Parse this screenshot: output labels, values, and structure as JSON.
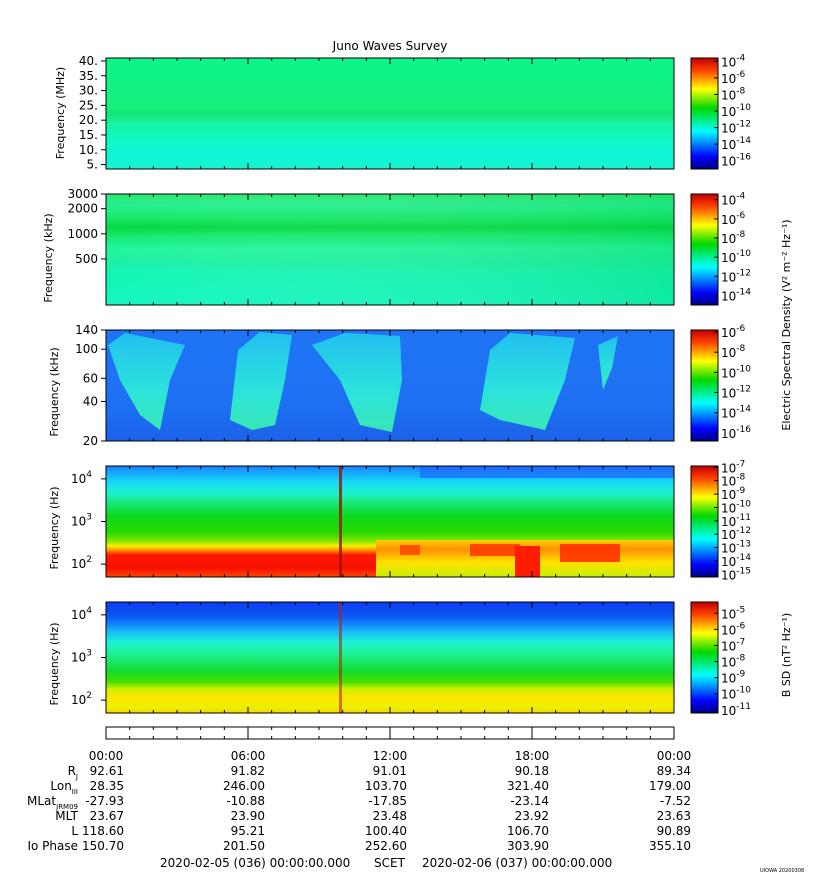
{
  "title": "Juno Waves Survey",
  "footer": {
    "start_time": "2020-02-05 (036) 00:00:00.000",
    "frame": "SCET",
    "end_time": "2020-02-06 (037) 00:00:00.000"
  },
  "stamp": "UIOWA 20200308",
  "colorbar_labels": {
    "e_spectral_density": "Electric Spectral Density (V² m⁻² Hz⁻¹)",
    "b_spectral_density": "B SD (nT² Hz⁻¹)"
  },
  "ephemeris": {
    "time_ticks": [
      "00:00",
      "06:00",
      "12:00",
      "18:00",
      "00:00"
    ],
    "rows": [
      {
        "label": "R",
        "sub": "J",
        "values": [
          "92.61",
          "91.82",
          "91.01",
          "90.18",
          "89.34"
        ]
      },
      {
        "label": "Lon",
        "sub": "III",
        "values": [
          "28.35",
          "246.00",
          "103.70",
          "321.40",
          "179.00"
        ]
      },
      {
        "label": "MLat",
        "sub": "JRM09",
        "values": [
          "-27.93",
          "-10.88",
          "-17.85",
          "-23.14",
          "-7.52"
        ]
      },
      {
        "label": "MLT",
        "sub": "",
        "values": [
          "23.67",
          "23.90",
          "23.48",
          "23.92",
          "23.63"
        ]
      },
      {
        "label": "L",
        "sub": "",
        "values": [
          "118.60",
          "95.21",
          "100.40",
          "106.70",
          "90.89"
        ]
      },
      {
        "label": "Io Phase",
        "sub": "",
        "values": [
          "150.70",
          "201.50",
          "252.60",
          "303.90",
          "355.10"
        ]
      }
    ]
  },
  "chart_data": [
    {
      "type": "heatmap",
      "ylabel": "Frequency (MHz)",
      "yscale": "linear",
      "ylim": [
        3.5,
        41
      ],
      "yticks": [
        "5.",
        "10.",
        "15.",
        "20.",
        "25.",
        "30.",
        "35.",
        "40."
      ],
      "ytick_values": [
        5,
        10,
        15,
        20,
        25,
        30,
        35,
        40
      ],
      "colorbar": {
        "ticks": [
          "-4",
          "-6",
          "-8",
          "-10",
          "-12",
          "-14",
          "-16"
        ],
        "tick_values": [
          -4,
          -6,
          -8,
          -10,
          -12,
          -14,
          -16
        ],
        "clim": [
          -17,
          -3.6
        ]
      }
    },
    {
      "type": "heatmap",
      "ylabel": "Frequency (kHz)",
      "yscale": "log",
      "ylim": [
        140,
        3000
      ],
      "yticks": [
        "3000",
        "2000",
        "1000",
        "500"
      ],
      "ytick_values": [
        3000,
        2000,
        1000,
        500
      ],
      "colorbar": {
        "ticks": [
          "-4",
          "-6",
          "-8",
          "-10",
          "-12",
          "-14"
        ],
        "tick_values": [
          -4,
          -6,
          -8,
          -10,
          -12,
          -14
        ],
        "clim": [
          -15,
          -3.4
        ]
      }
    },
    {
      "type": "heatmap",
      "ylabel": "Frequency (kHz)",
      "yscale": "log",
      "ylim": [
        20,
        140
      ],
      "yticks": [
        "140",
        "100",
        "60",
        "40",
        "20"
      ],
      "ytick_values": [
        140,
        100,
        60,
        40,
        20
      ],
      "colorbar": {
        "ticks": [
          "-6",
          "-8",
          "-10",
          "-12",
          "-14",
          "-16"
        ],
        "tick_values": [
          -6,
          -8,
          -10,
          -12,
          -14,
          -16
        ],
        "clim": [
          -16.8,
          -5.8
        ]
      }
    },
    {
      "type": "heatmap",
      "ylabel": "Frequency (Hz)",
      "yscale": "log",
      "ylim": [
        50,
        20000
      ],
      "yticks": [
        "4",
        "3",
        "2"
      ],
      "ytick_values": [
        10000,
        1000,
        100
      ],
      "colorbar": {
        "ticks": [
          "-7",
          "-8",
          "-9",
          "-10",
          "-11",
          "-12",
          "-13",
          "-14",
          "-15"
        ],
        "tick_values": [
          -7,
          -8,
          -9,
          -10,
          -11,
          -12,
          -13,
          -14,
          -15
        ],
        "clim": [
          -15.2,
          -6.9
        ]
      }
    },
    {
      "type": "heatmap",
      "ylabel": "Frequency (Hz)",
      "yscale": "log",
      "ylim": [
        50,
        20000
      ],
      "yticks": [
        "4",
        "3",
        "2"
      ],
      "ytick_values": [
        10000,
        1000,
        100
      ],
      "colorbar": {
        "ticks": [
          "-5",
          "-6",
          "-7",
          "-8",
          "-9",
          "-10",
          "-11"
        ],
        "tick_values": [
          -5,
          -6,
          -7,
          -8,
          -9,
          -10,
          -11
        ],
        "clim": [
          -11.2,
          -4.3
        ]
      }
    }
  ]
}
